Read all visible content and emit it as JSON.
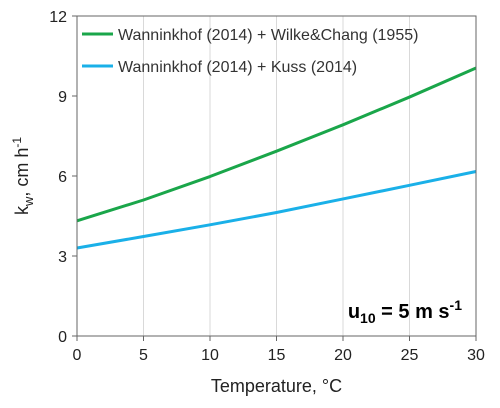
{
  "chart_data": {
    "type": "line",
    "xlabel": "Temperature, °C",
    "ylabel_main": "k",
    "ylabel_sub": "w",
    "ylabel_rest": ", cm h",
    "ylabel_sup": "-1",
    "xlim": [
      0,
      30
    ],
    "ylim": [
      0,
      12
    ],
    "xticks": [
      "0",
      "5",
      "10",
      "15",
      "20",
      "25",
      "30"
    ],
    "yticks": [
      "0",
      "3",
      "6",
      "9",
      "12"
    ],
    "grid": "vertical",
    "legend_position": "top-left",
    "annotation": {
      "main": "u",
      "sub": "10",
      "rest": " = 5 m s",
      "sup": "-1"
    },
    "x": [
      0,
      5,
      10,
      15,
      20,
      25,
      30
    ],
    "series": [
      {
        "name": "Wanninkhof (2014) + Wilke&Chang (1955)",
        "color": "#1aa64a",
        "values": [
          4.32,
          5.1,
          5.98,
          6.93,
          7.92,
          8.96,
          10.05
        ]
      },
      {
        "name": "Wanninkhof (2014) + Kuss (2014)",
        "color": "#1ab0e8",
        "values": [
          3.3,
          3.73,
          4.17,
          4.63,
          5.14,
          5.65,
          6.17
        ]
      }
    ]
  }
}
